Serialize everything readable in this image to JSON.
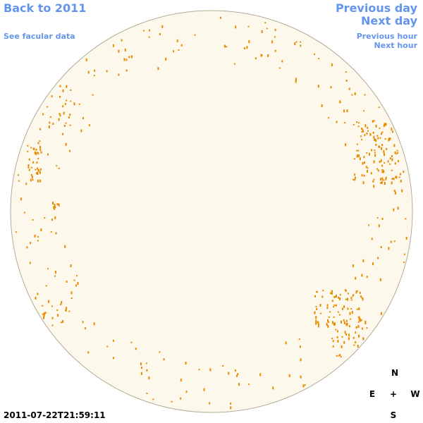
{
  "links": {
    "back": "Back to 2011",
    "facular_data": "See facular data",
    "previous_day": "Previous day",
    "next_day": "Next day",
    "previous_hour": "Previous hour",
    "next_hour": "Next hour"
  },
  "compass": {
    "north": "N",
    "east": "E",
    "center": "+",
    "west": "W",
    "south": "S"
  },
  "timestamp": "2011-07-22T21:59:11"
}
